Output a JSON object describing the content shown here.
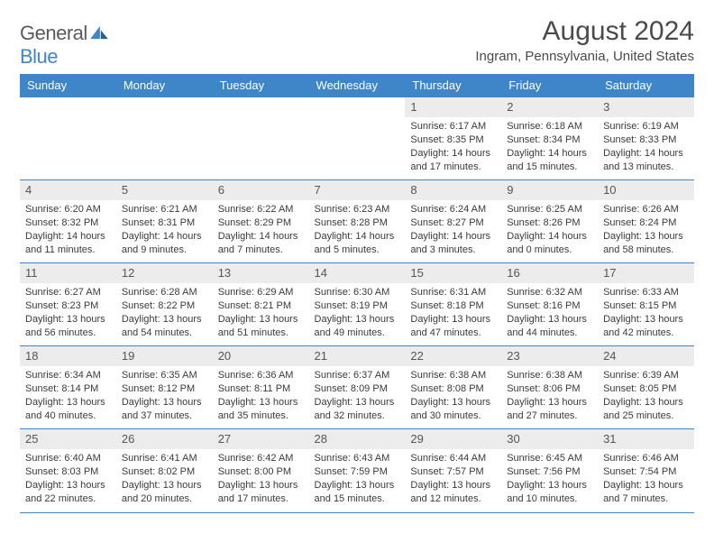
{
  "brand": {
    "word1": "General",
    "word2": "Blue"
  },
  "title": "August 2024",
  "location": "Ingram, Pennsylvania, United States",
  "colors": {
    "accent": "#3e86c7",
    "daynum_bg": "#ececec",
    "text": "#3a3a3a",
    "bg": "#ffffff"
  },
  "weekdays": [
    "Sunday",
    "Monday",
    "Tuesday",
    "Wednesday",
    "Thursday",
    "Friday",
    "Saturday"
  ],
  "weeks": [
    [
      null,
      null,
      null,
      null,
      {
        "n": "1",
        "sunrise": "6:17 AM",
        "sunset": "8:35 PM",
        "daylight": "14 hours and 17 minutes."
      },
      {
        "n": "2",
        "sunrise": "6:18 AM",
        "sunset": "8:34 PM",
        "daylight": "14 hours and 15 minutes."
      },
      {
        "n": "3",
        "sunrise": "6:19 AM",
        "sunset": "8:33 PM",
        "daylight": "14 hours and 13 minutes."
      }
    ],
    [
      {
        "n": "4",
        "sunrise": "6:20 AM",
        "sunset": "8:32 PM",
        "daylight": "14 hours and 11 minutes."
      },
      {
        "n": "5",
        "sunrise": "6:21 AM",
        "sunset": "8:31 PM",
        "daylight": "14 hours and 9 minutes."
      },
      {
        "n": "6",
        "sunrise": "6:22 AM",
        "sunset": "8:29 PM",
        "daylight": "14 hours and 7 minutes."
      },
      {
        "n": "7",
        "sunrise": "6:23 AM",
        "sunset": "8:28 PM",
        "daylight": "14 hours and 5 minutes."
      },
      {
        "n": "8",
        "sunrise": "6:24 AM",
        "sunset": "8:27 PM",
        "daylight": "14 hours and 3 minutes."
      },
      {
        "n": "9",
        "sunrise": "6:25 AM",
        "sunset": "8:26 PM",
        "daylight": "14 hours and 0 minutes."
      },
      {
        "n": "10",
        "sunrise": "6:26 AM",
        "sunset": "8:24 PM",
        "daylight": "13 hours and 58 minutes."
      }
    ],
    [
      {
        "n": "11",
        "sunrise": "6:27 AM",
        "sunset": "8:23 PM",
        "daylight": "13 hours and 56 minutes."
      },
      {
        "n": "12",
        "sunrise": "6:28 AM",
        "sunset": "8:22 PM",
        "daylight": "13 hours and 54 minutes."
      },
      {
        "n": "13",
        "sunrise": "6:29 AM",
        "sunset": "8:21 PM",
        "daylight": "13 hours and 51 minutes."
      },
      {
        "n": "14",
        "sunrise": "6:30 AM",
        "sunset": "8:19 PM",
        "daylight": "13 hours and 49 minutes."
      },
      {
        "n": "15",
        "sunrise": "6:31 AM",
        "sunset": "8:18 PM",
        "daylight": "13 hours and 47 minutes."
      },
      {
        "n": "16",
        "sunrise": "6:32 AM",
        "sunset": "8:16 PM",
        "daylight": "13 hours and 44 minutes."
      },
      {
        "n": "17",
        "sunrise": "6:33 AM",
        "sunset": "8:15 PM",
        "daylight": "13 hours and 42 minutes."
      }
    ],
    [
      {
        "n": "18",
        "sunrise": "6:34 AM",
        "sunset": "8:14 PM",
        "daylight": "13 hours and 40 minutes."
      },
      {
        "n": "19",
        "sunrise": "6:35 AM",
        "sunset": "8:12 PM",
        "daylight": "13 hours and 37 minutes."
      },
      {
        "n": "20",
        "sunrise": "6:36 AM",
        "sunset": "8:11 PM",
        "daylight": "13 hours and 35 minutes."
      },
      {
        "n": "21",
        "sunrise": "6:37 AM",
        "sunset": "8:09 PM",
        "daylight": "13 hours and 32 minutes."
      },
      {
        "n": "22",
        "sunrise": "6:38 AM",
        "sunset": "8:08 PM",
        "daylight": "13 hours and 30 minutes."
      },
      {
        "n": "23",
        "sunrise": "6:38 AM",
        "sunset": "8:06 PM",
        "daylight": "13 hours and 27 minutes."
      },
      {
        "n": "24",
        "sunrise": "6:39 AM",
        "sunset": "8:05 PM",
        "daylight": "13 hours and 25 minutes."
      }
    ],
    [
      {
        "n": "25",
        "sunrise": "6:40 AM",
        "sunset": "8:03 PM",
        "daylight": "13 hours and 22 minutes."
      },
      {
        "n": "26",
        "sunrise": "6:41 AM",
        "sunset": "8:02 PM",
        "daylight": "13 hours and 20 minutes."
      },
      {
        "n": "27",
        "sunrise": "6:42 AM",
        "sunset": "8:00 PM",
        "daylight": "13 hours and 17 minutes."
      },
      {
        "n": "28",
        "sunrise": "6:43 AM",
        "sunset": "7:59 PM",
        "daylight": "13 hours and 15 minutes."
      },
      {
        "n": "29",
        "sunrise": "6:44 AM",
        "sunset": "7:57 PM",
        "daylight": "13 hours and 12 minutes."
      },
      {
        "n": "30",
        "sunrise": "6:45 AM",
        "sunset": "7:56 PM",
        "daylight": "13 hours and 10 minutes."
      },
      {
        "n": "31",
        "sunrise": "6:46 AM",
        "sunset": "7:54 PM",
        "daylight": "13 hours and 7 minutes."
      }
    ]
  ],
  "labels": {
    "sunrise": "Sunrise:",
    "sunset": "Sunset:",
    "daylight": "Daylight:"
  }
}
